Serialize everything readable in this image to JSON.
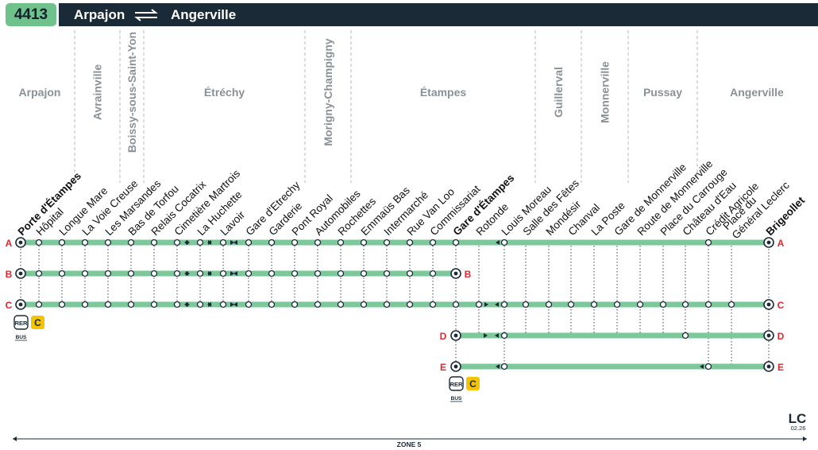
{
  "header": {
    "route_number": "4413",
    "origin": "Arpajon",
    "destination": "Angerville"
  },
  "communes": [
    {
      "name": "Arpajon",
      "vertical": false
    },
    {
      "name": "Avrainville",
      "vertical": true
    },
    {
      "name": "Boissy-sous-Saint-Yon",
      "vertical": true
    },
    {
      "name": "Étréchy",
      "vertical": false
    },
    {
      "name": "Morigny-Champigny",
      "vertical": true
    },
    {
      "name": "Étampes",
      "vertical": false
    },
    {
      "name": "Guillerval",
      "vertical": true
    },
    {
      "name": "Monnerville",
      "vertical": true
    },
    {
      "name": "Pussay",
      "vertical": false
    },
    {
      "name": "Angerville",
      "vertical": false
    }
  ],
  "stops": [
    {
      "name": "Porte d'Étampes",
      "terminus": true
    },
    {
      "name": "Hôpital",
      "terminus": false
    },
    {
      "name": "Longue Mare",
      "terminus": false
    },
    {
      "name": "La Voie Creuse",
      "terminus": false
    },
    {
      "name": "Les Marsandes",
      "terminus": false
    },
    {
      "name": "Bas de Torfou",
      "terminus": false
    },
    {
      "name": "Relais Cocatrix",
      "terminus": false
    },
    {
      "name": "Cimetière Martrois",
      "terminus": false
    },
    {
      "name": "La Huchette",
      "terminus": false
    },
    {
      "name": "Lavoir",
      "terminus": false
    },
    {
      "name": "Gare d'Etrechy",
      "terminus": false
    },
    {
      "name": "Garderie",
      "terminus": false
    },
    {
      "name": "Pont Royal",
      "terminus": false
    },
    {
      "name": "Automobiles",
      "terminus": false
    },
    {
      "name": "Rochettes",
      "terminus": false
    },
    {
      "name": "Emmaüs Bas",
      "terminus": false
    },
    {
      "name": "Intermarché",
      "terminus": false
    },
    {
      "name": "Rue Van Loo",
      "terminus": false
    },
    {
      "name": "Commissariat",
      "terminus": false
    },
    {
      "name": "Gare d'Étampes",
      "terminus": true
    },
    {
      "name": "Rotonde",
      "terminus": false
    },
    {
      "name": "Louis Moreau",
      "terminus": false
    },
    {
      "name": "Salle des Fêtes",
      "terminus": false
    },
    {
      "name": "Mondésir",
      "terminus": false
    },
    {
      "name": "Chanval",
      "terminus": false
    },
    {
      "name": "La Poste",
      "terminus": false
    },
    {
      "name": "Gare de Monnerville",
      "terminus": false
    },
    {
      "name": "Route de Monnerville",
      "terminus": false
    },
    {
      "name": "Place du Carrouge",
      "terminus": false
    },
    {
      "name": "Château d'Eau",
      "terminus": false
    },
    {
      "name": "Crédit Agricole",
      "terminus": false
    },
    {
      "name": "Place du Général Leclerc",
      "terminus": false
    },
    {
      "name": "Brigeollet",
      "terminus": true
    }
  ],
  "branches": [
    {
      "label": "A",
      "label_left": "A",
      "label_right": "A"
    },
    {
      "label": "B",
      "label_left": "B",
      "label_right": "B"
    },
    {
      "label": "C",
      "label_left": "C",
      "label_right": "C"
    },
    {
      "label": "D",
      "label_left": "D",
      "label_right": "D"
    },
    {
      "label": "E",
      "label_left": "E",
      "label_right": "E"
    }
  ],
  "connections": {
    "rer_label": "RER",
    "rer_line": "C",
    "bus_label": "BUS"
  },
  "zone_label": "ZONE 5",
  "footer": {
    "logo_text": "LC",
    "date": "02.26"
  },
  "colors": {
    "line": "#7dc89a",
    "header_bg": "#1a2a37",
    "badge_bg": "#6fc28b",
    "branch_label": "#e0262d",
    "rer_yellow": "#f5c400",
    "commune_text": "#8a9196",
    "divider": "#b4b9bd"
  }
}
